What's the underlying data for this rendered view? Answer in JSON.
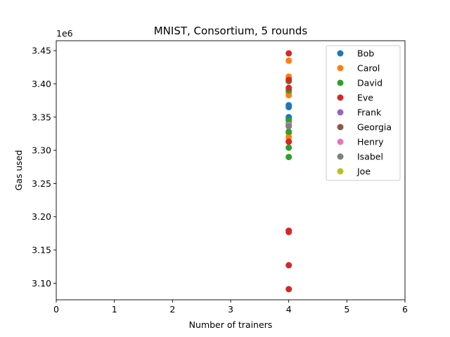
{
  "chart_data": {
    "type": "scatter",
    "title": "MNIST, Consortium, 5 rounds",
    "xlabel": "Number of trainers",
    "ylabel": "Gas used",
    "y_multiplier_label": "1e6",
    "xlim": [
      0,
      6
    ],
    "ylim": [
      3.075,
      3.465
    ],
    "x_ticks": [
      0,
      1,
      2,
      3,
      4,
      5,
      6
    ],
    "y_ticks": [
      3.1,
      3.15,
      3.2,
      3.25,
      3.3,
      3.35,
      3.4,
      3.45
    ],
    "y_tick_labels": [
      "3.10",
      "3.15",
      "3.20",
      "3.25",
      "3.30",
      "3.35",
      "3.40",
      "3.45"
    ],
    "grid": false,
    "legend_position": "top-right",
    "series": [
      {
        "name": "Bob",
        "color": "#1f77b4",
        "x": [
          4,
          4,
          4,
          4,
          4
        ],
        "y": [
          3.368,
          3.365,
          3.35,
          3.347,
          3.338
        ]
      },
      {
        "name": "Carol",
        "color": "#ff7f0e",
        "x": [
          4,
          4,
          4,
          4,
          4,
          4,
          4
        ],
        "y": [
          3.435,
          3.411,
          3.408,
          3.387,
          3.383,
          3.326,
          3.32
        ]
      },
      {
        "name": "David",
        "color": "#2ca02c",
        "x": [
          4,
          4,
          4,
          4,
          4,
          4,
          4,
          4
        ],
        "y": [
          3.404,
          3.39,
          3.345,
          3.34,
          3.328,
          3.313,
          3.304,
          3.29
        ]
      },
      {
        "name": "Eve",
        "color": "#d62728",
        "x": [
          4,
          4,
          4,
          4,
          4,
          4,
          4,
          4
        ],
        "y": [
          3.446,
          3.406,
          3.394,
          3.313,
          3.179,
          3.177,
          3.127,
          3.091
        ]
      },
      {
        "name": "Frank",
        "color": "#9467bd",
        "x": [],
        "y": []
      },
      {
        "name": "Georgia",
        "color": "#8c564b",
        "x": [],
        "y": []
      },
      {
        "name": "Henry",
        "color": "#e377c2",
        "x": [
          4
        ],
        "y": [
          3.338
        ]
      },
      {
        "name": "Isabel",
        "color": "#7f7f7f",
        "x": [
          4
        ],
        "y": [
          3.336
        ]
      },
      {
        "name": "Joe",
        "color": "#bcbd22",
        "x": [],
        "y": []
      }
    ]
  }
}
